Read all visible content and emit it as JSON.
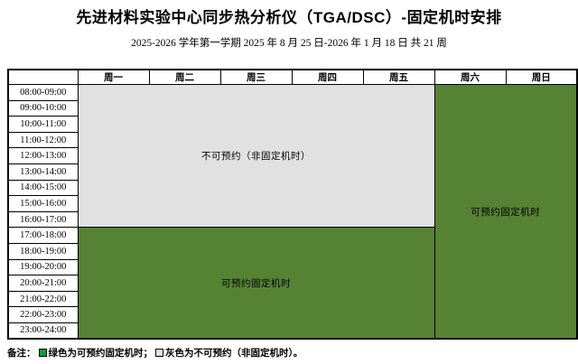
{
  "title": "先进材料实验中心同步热分析仪（TGA/DSC）-固定机时安排",
  "subtitle": "2025-2026 学年第一学期 2025 年 8 月 25 日-2026 年 1 月 18 日 共 21 周",
  "colors": {
    "available_green": "#568234",
    "unavailable_gray": "#E1E1E1",
    "legend_green_swatch": "#00A03C",
    "legend_gray_swatch": "#E1E1E1",
    "border": "#000000",
    "available_text": "#ffffff",
    "unavailable_text": "#000000"
  },
  "table": {
    "day_headers": [
      "周一",
      "周二",
      "周三",
      "周四",
      "周五",
      "周六",
      "周日"
    ],
    "time_slots": [
      "08:00-09:00",
      "09:00-10:00",
      "10:00-11:00",
      "11:00-12:00",
      "12:00-13:00",
      "13:00-14:00",
      "14:00-15:00",
      "15:00-16:00",
      "16:00-17:00",
      "17:00-18:00",
      "18:00-19:00",
      "19:00-20:00",
      "20:00-21:00",
      "21:00-22:00",
      "22:00-23:00",
      "23:00-24:00"
    ],
    "regions": {
      "weekday_daytime": {
        "label": "不可预约（非固定机时）",
        "status": "unavailable",
        "days": "周一-周五",
        "hours": "08:00-17:00"
      },
      "weekday_evening": {
        "label": "可预约固定机时",
        "status": "available",
        "days": "周一-周五",
        "hours": "17:00-24:00"
      },
      "weekend": {
        "label": "可预约固定机时",
        "status": "available",
        "days": "周六-周日",
        "hours": "08:00-24:00"
      }
    }
  },
  "footer": {
    "prefix": "备注：",
    "legend_green_label": "绿色为可预约固定机时；",
    "legend_gray_label": "灰色为不可预约（非固定机时）。"
  }
}
